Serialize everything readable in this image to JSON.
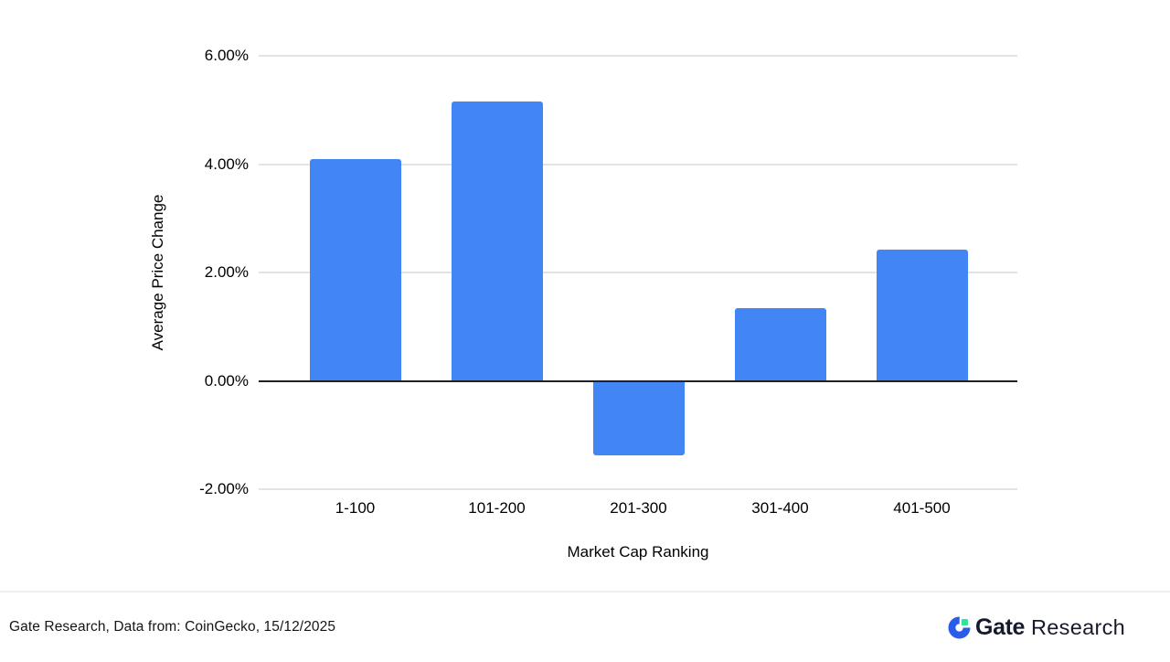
{
  "chart_data": {
    "type": "bar",
    "categories": [
      "1-100",
      "101-200",
      "201-300",
      "301-400",
      "401-500"
    ],
    "values": [
      4.1,
      5.15,
      -1.37,
      1.35,
      2.42
    ],
    "title": "",
    "xlabel": "Market Cap Ranking",
    "ylabel": "Average Price Change",
    "ylim": [
      -2,
      6
    ],
    "yticks": [
      6,
      4,
      2,
      0,
      -2
    ],
    "ytick_labels": [
      "6.00%",
      "4.00%",
      "2.00%",
      "0.00%",
      "-2.00%"
    ],
    "bar_color": "#4285f4",
    "grid": true,
    "legend": false
  },
  "footer": {
    "source_text": "Gate Research, Data from: CoinGecko, 15/12/2025",
    "logo": {
      "icon": "gate-logo-icon",
      "brand": "Gate",
      "suffix": "Research",
      "blue": "#2a5ceb",
      "green": "#2ee5a0"
    }
  }
}
